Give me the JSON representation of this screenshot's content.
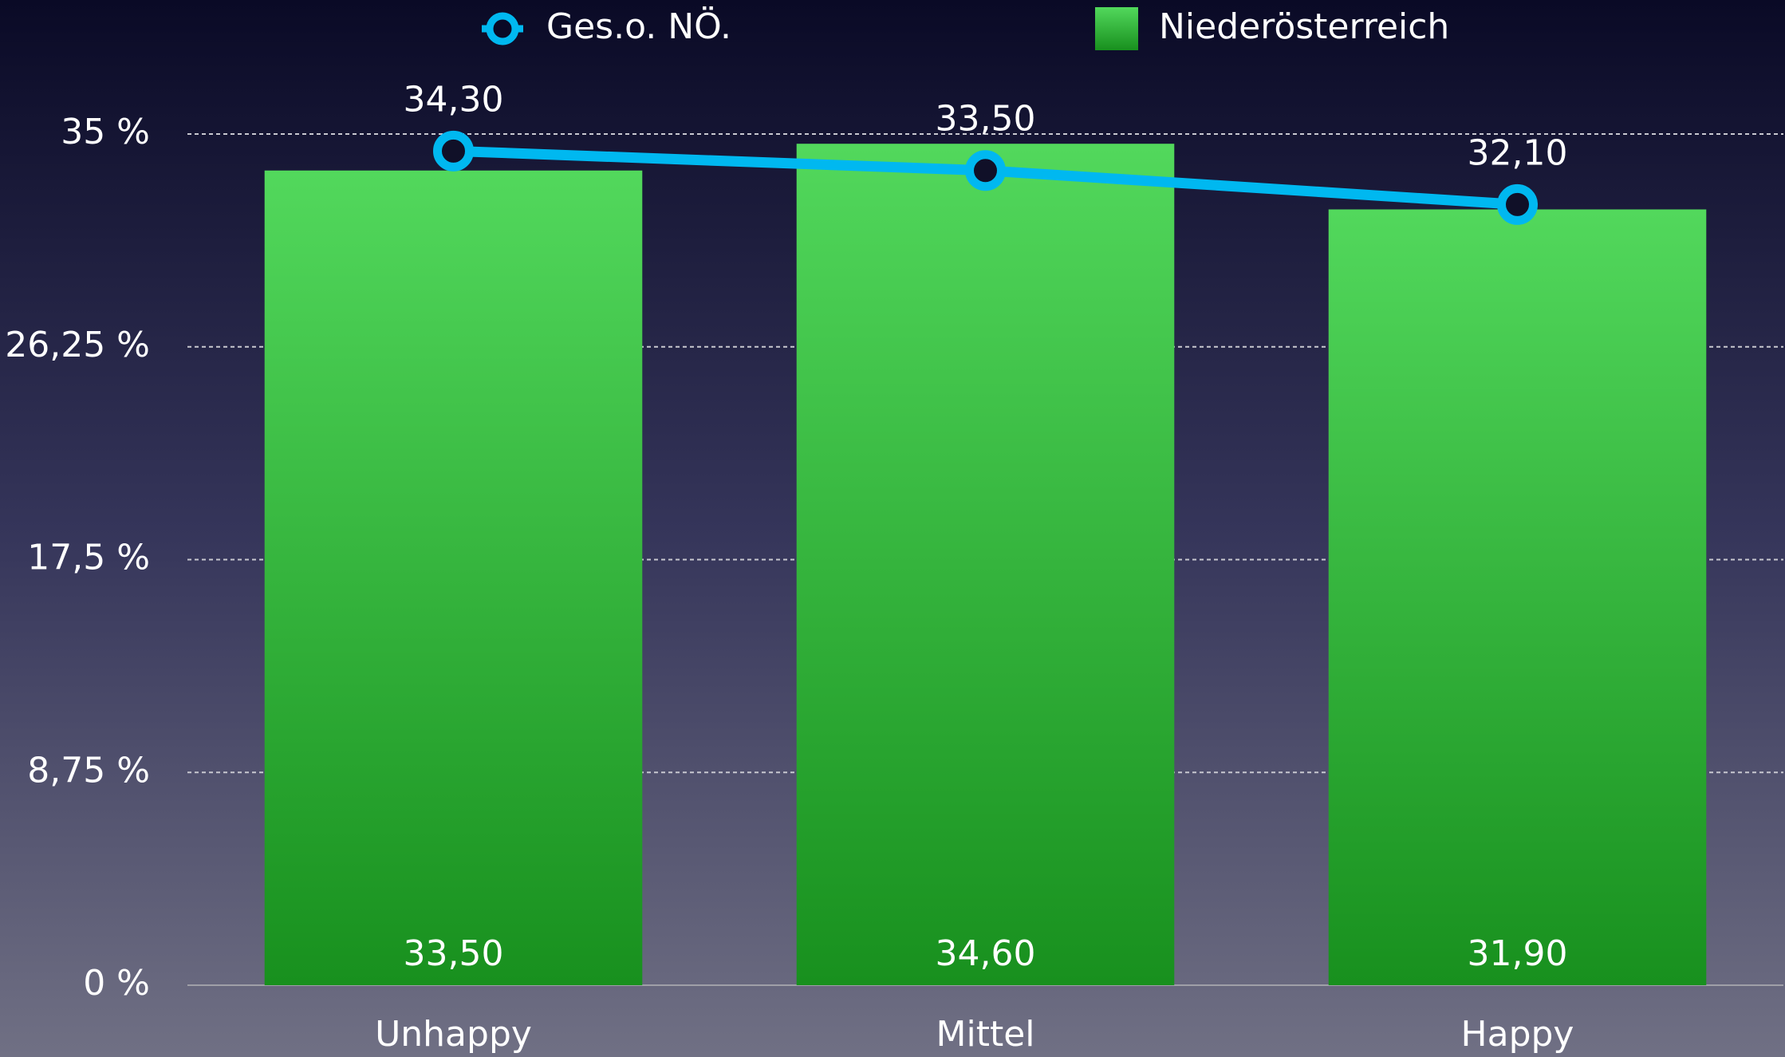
{
  "chart_data": {
    "type": "combo",
    "categories": [
      "Unhappy",
      "Mittel",
      "Happy"
    ],
    "series": [
      {
        "name": "Niederösterreich",
        "type": "bar",
        "color": "#3cc44a",
        "values": [
          33.5,
          34.6,
          31.9
        ],
        "value_labels": [
          "33,50",
          "34,60",
          "31,90"
        ]
      },
      {
        "name": "Ges.o. NÖ.",
        "type": "line",
        "color": "#00b8f0",
        "values": [
          34.3,
          33.5,
          32.1
        ],
        "value_labels": [
          "34,30",
          "33,50",
          "32,10"
        ]
      }
    ],
    "ylim": [
      0,
      35
    ],
    "yticks": [
      {
        "value": 0,
        "label": "0 %"
      },
      {
        "value": 8.75,
        "label": "8,75 %"
      },
      {
        "value": 17.5,
        "label": "17,5 %"
      },
      {
        "value": 26.25,
        "label": "26,25 %"
      },
      {
        "value": 35,
        "label": "35 %"
      }
    ],
    "grid": true
  }
}
